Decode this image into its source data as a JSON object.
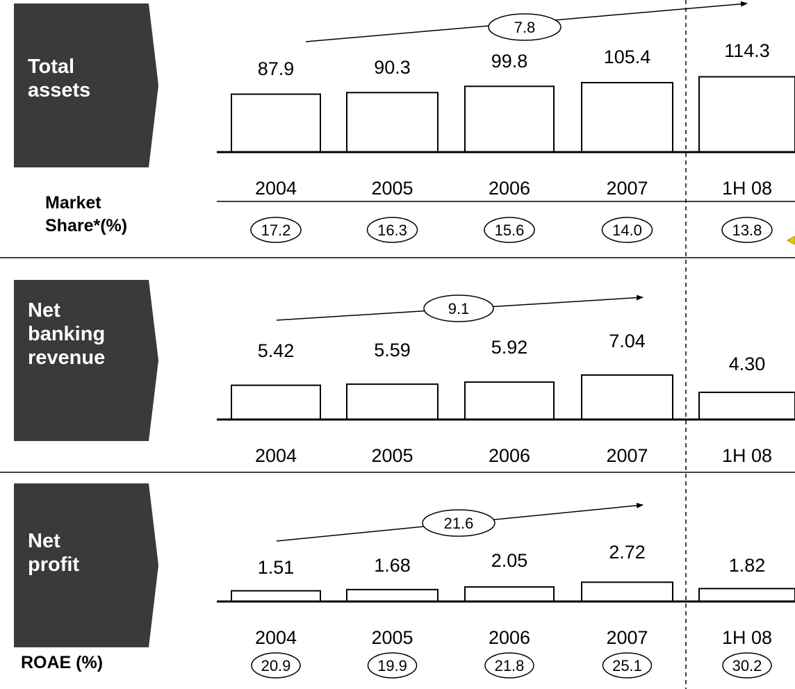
{
  "chart_data": [
    {
      "type": "bar",
      "label": "Total\nassets",
      "categories": [
        "2004",
        "2005",
        "2006",
        "2007",
        "1H 08"
      ],
      "values": [
        87.9,
        90.3,
        99.8,
        105.4,
        114.3
      ],
      "value_labels": [
        "87.9",
        "90.3",
        "99.8",
        "105.4",
        "114.3"
      ],
      "growth": "7.8",
      "sub_metric": {
        "label": "Market\nShare*(%)",
        "values": [
          "17.2",
          "16.3",
          "15.6",
          "14.0",
          "13.8"
        ]
      }
    },
    {
      "type": "bar",
      "label": "Net\nbanking\nrevenue",
      "categories": [
        "2004",
        "2005",
        "2006",
        "2007",
        "1H 08"
      ],
      "values": [
        5.42,
        5.59,
        5.92,
        7.04,
        4.3
      ],
      "value_labels": [
        "5.42",
        "5.59",
        "5.92",
        "7.04",
        "4.30"
      ],
      "growth": "9.1"
    },
    {
      "type": "bar",
      "label": "Net\nprofit",
      "categories": [
        "2004",
        "2005",
        "2006",
        "2007",
        "1H 08"
      ],
      "values": [
        1.51,
        1.68,
        2.05,
        2.72,
        1.82
      ],
      "value_labels": [
        "1.51",
        "1.68",
        "2.05",
        "2.72",
        "1.82"
      ],
      "growth": "21.6",
      "sub_metric": {
        "label": "ROAE (%)",
        "values": [
          "20.9",
          "19.9",
          "21.8",
          "25.1",
          "30.2"
        ]
      }
    }
  ],
  "colors": {
    "tag_fill": "#3a3a3a",
    "tag_text": "#ffffff",
    "bar_fill": "#ffffff",
    "bar_stroke": "#000000"
  }
}
